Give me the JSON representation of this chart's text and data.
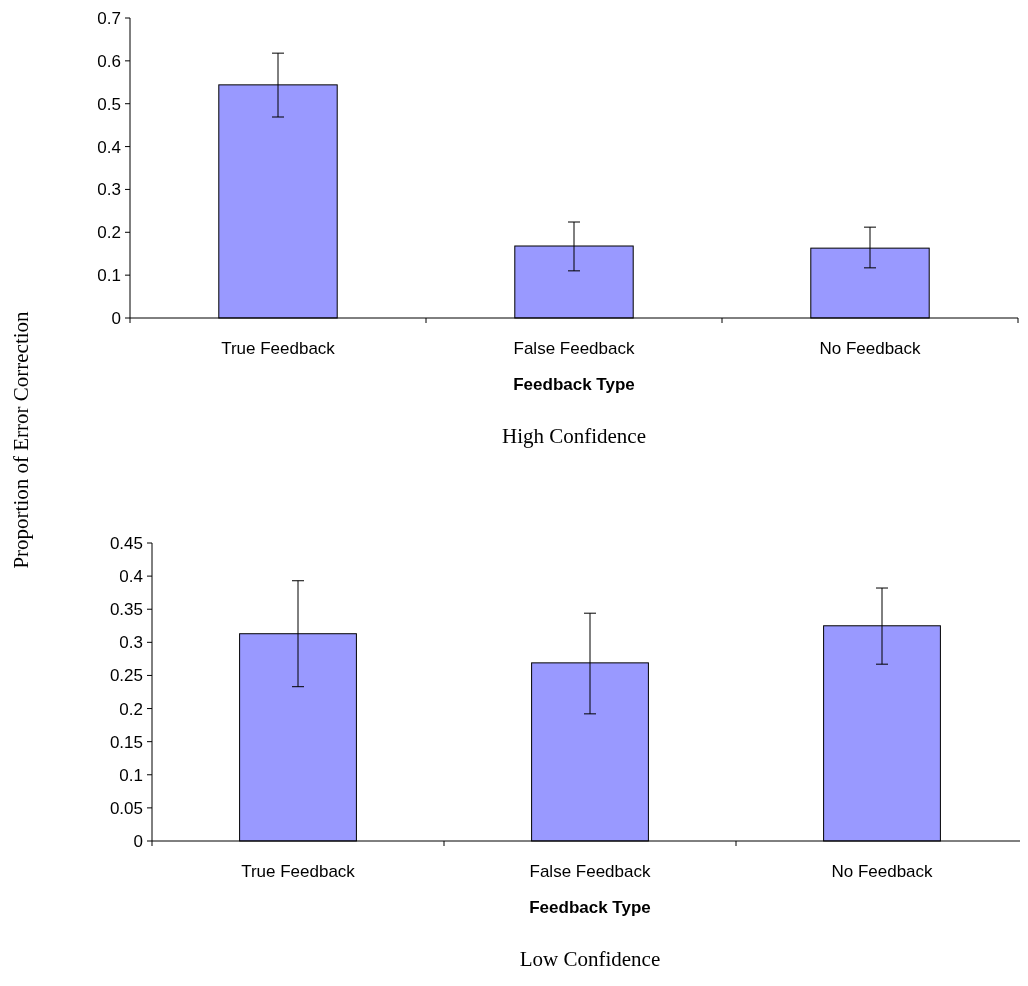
{
  "chart_data": [
    {
      "type": "bar",
      "title": "High Confidence",
      "xlabel": "Feedback Type",
      "ylabel": "Proportion of Error Correction",
      "categories": [
        "True Feedback",
        "False Feedback",
        "No Feedback"
      ],
      "values": [
        0.544,
        0.168,
        0.163
      ],
      "errors": [
        [
          0.469,
          0.618
        ],
        [
          0.11,
          0.224
        ],
        [
          0.117,
          0.212
        ]
      ],
      "color": "#9999ff",
      "ylim": [
        0,
        0.7
      ],
      "yticks": [
        0,
        0.1,
        0.2,
        0.3,
        0.4,
        0.5,
        0.6,
        0.7
      ]
    },
    {
      "type": "bar",
      "title": "Low Confidence",
      "xlabel": "Feedback Type",
      "categories": [
        "True Feedback",
        "False Feedback",
        "No Feedback"
      ],
      "values": [
        0.313,
        0.269,
        0.325
      ],
      "errors": [
        [
          0.233,
          0.393
        ],
        [
          0.192,
          0.344
        ],
        [
          0.267,
          0.382
        ]
      ],
      "color": "#9999ff",
      "ylim": [
        0,
        0.45
      ],
      "yticks": [
        0,
        0.05,
        0.1,
        0.15,
        0.2,
        0.25,
        0.3,
        0.35,
        0.4,
        0.45
      ]
    }
  ]
}
